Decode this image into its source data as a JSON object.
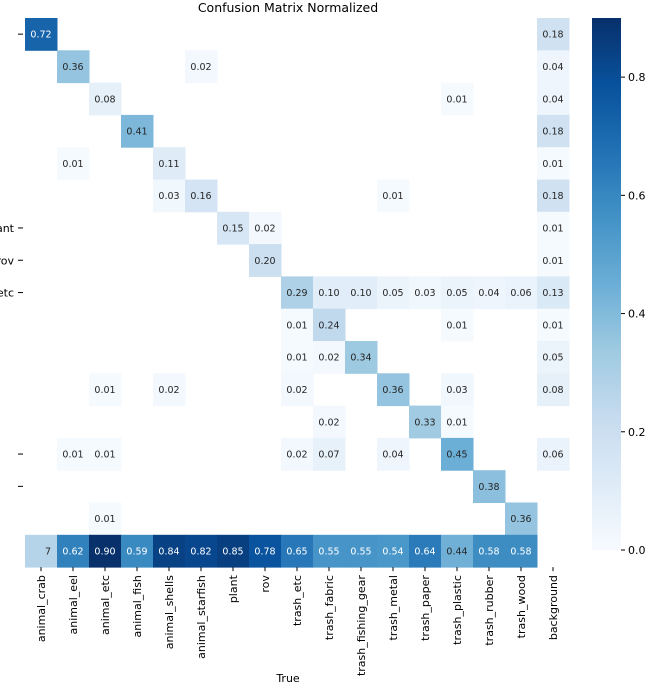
{
  "chart_data": {
    "type": "heatmap",
    "title": "Confusion Matrix Normalized",
    "xlabel": "True",
    "ylabel": "",
    "x_categories": [
      "animal_crab",
      "animal_eel",
      "animal_etc",
      "animal_fish",
      "animal_shells",
      "animal_starfish",
      "plant",
      "rov",
      "trash_etc",
      "trash_fabric",
      "trash_fishing_gear",
      "trash_metal",
      "trash_paper",
      "trash_plastic",
      "trash_rubber",
      "trash_wood",
      "background"
    ],
    "y_categories": [
      "",
      "",
      "",
      "",
      "",
      "",
      "ant",
      "rov",
      "etc",
      "",
      "",
      "",
      "",
      "",
      "",
      "",
      ""
    ],
    "colormap": "Blues",
    "vmin": 0.0,
    "vmax": 0.9,
    "colorbar_ticks": [
      0.0,
      0.2,
      0.4,
      0.6,
      0.8
    ],
    "colorbar_tick_labels": [
      "0.0",
      "0.2",
      "0.4",
      "0.6",
      "0.8"
    ],
    "values": [
      [
        0.72,
        null,
        null,
        null,
        null,
        null,
        null,
        null,
        null,
        null,
        null,
        null,
        null,
        null,
        null,
        null,
        0.18
      ],
      [
        null,
        0.36,
        null,
        null,
        null,
        0.02,
        null,
        null,
        null,
        null,
        null,
        null,
        null,
        null,
        null,
        null,
        0.04
      ],
      [
        null,
        null,
        0.08,
        null,
        null,
        null,
        null,
        null,
        null,
        null,
        null,
        null,
        null,
        0.01,
        null,
        null,
        0.04
      ],
      [
        null,
        null,
        null,
        0.41,
        null,
        null,
        null,
        null,
        null,
        null,
        null,
        null,
        null,
        null,
        null,
        null,
        0.18
      ],
      [
        null,
        0.01,
        null,
        null,
        0.11,
        null,
        null,
        null,
        null,
        null,
        null,
        null,
        null,
        null,
        null,
        null,
        0.01
      ],
      [
        null,
        null,
        null,
        null,
        0.03,
        0.16,
        null,
        null,
        null,
        null,
        null,
        0.01,
        null,
        null,
        null,
        null,
        0.18
      ],
      [
        null,
        null,
        null,
        null,
        null,
        null,
        0.15,
        0.02,
        null,
        null,
        null,
        null,
        null,
        null,
        null,
        null,
        0.01
      ],
      [
        null,
        null,
        null,
        null,
        null,
        null,
        null,
        0.2,
        null,
        null,
        null,
        null,
        null,
        null,
        null,
        null,
        0.01
      ],
      [
        null,
        null,
        null,
        null,
        null,
        null,
        null,
        null,
        0.29,
        0.1,
        0.1,
        0.05,
        0.03,
        0.05,
        0.04,
        0.06,
        0.13
      ],
      [
        null,
        null,
        null,
        null,
        null,
        null,
        null,
        null,
        0.01,
        0.24,
        null,
        null,
        null,
        0.01,
        null,
        null,
        0.01
      ],
      [
        null,
        null,
        null,
        null,
        null,
        null,
        null,
        null,
        0.01,
        0.02,
        0.34,
        null,
        null,
        null,
        null,
        null,
        0.05
      ],
      [
        null,
        null,
        0.01,
        null,
        0.02,
        null,
        null,
        null,
        0.02,
        null,
        null,
        0.36,
        null,
        0.03,
        null,
        null,
        0.08
      ],
      [
        null,
        null,
        null,
        null,
        null,
        null,
        null,
        null,
        null,
        0.02,
        null,
        null,
        0.33,
        0.01,
        null,
        null,
        null
      ],
      [
        null,
        0.01,
        0.01,
        null,
        null,
        null,
        null,
        null,
        0.02,
        0.07,
        null,
        0.04,
        null,
        0.45,
        null,
        null,
        0.06
      ],
      [
        null,
        null,
        null,
        null,
        null,
        null,
        null,
        null,
        null,
        null,
        null,
        null,
        null,
        null,
        0.38,
        null,
        null
      ],
      [
        null,
        null,
        0.01,
        null,
        null,
        null,
        null,
        null,
        null,
        null,
        null,
        null,
        null,
        null,
        null,
        0.36,
        null
      ],
      [
        0.27,
        0.62,
        0.9,
        0.59,
        0.84,
        0.82,
        0.85,
        0.78,
        0.65,
        0.55,
        0.55,
        0.54,
        0.64,
        0.44,
        0.58,
        0.58,
        null
      ]
    ],
    "first_cell_visible_label": "7"
  }
}
